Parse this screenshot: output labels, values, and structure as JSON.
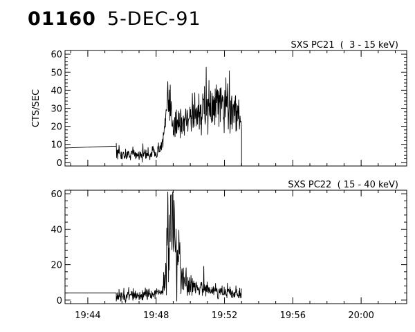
{
  "header": {
    "event_id": "01160",
    "date": "5-DEC-91"
  },
  "chart_data": [
    {
      "type": "line",
      "panel_label": "SXS PC21  (  3 - 15 keV)",
      "ylabel": "CTS/SEC",
      "xlim": [
        "19:42:40",
        "20:02:40"
      ],
      "ylim": [
        -2,
        62
      ],
      "yticks": [
        0,
        10,
        20,
        30,
        40,
        50,
        60
      ],
      "xticks": [
        "19:44",
        "19:48",
        "19:52",
        "19:56",
        "20:00"
      ],
      "series": [
        {
          "x": [
            "19:42:40",
            "19:45:40",
            "19:45:40",
            "19:46:10",
            "19:46:40",
            "19:47:10",
            "19:47:40",
            "19:48:10",
            "19:48:25",
            "19:48:40",
            "19:48:45",
            "19:48:55",
            "19:49:10",
            "19:49:30",
            "19:49:50",
            "19:50:10",
            "19:50:30",
            "19:50:50",
            "19:51:10",
            "19:51:30",
            "19:51:50",
            "19:52:10",
            "19:52:35",
            "19:52:55",
            "19:53:00",
            "19:53:00"
          ],
          "values": [
            8,
            9,
            5,
            4,
            5,
            4,
            5,
            7,
            12,
            30,
            33,
            26,
            22,
            21,
            25,
            30,
            28,
            27,
            30,
            32,
            31,
            33,
            31,
            25,
            18,
            0
          ]
        }
      ]
    },
    {
      "type": "line",
      "panel_label": "SXS PC22  ( 15 - 40 keV)",
      "ylabel": "",
      "xlim": [
        "19:42:40",
        "20:02:40"
      ],
      "ylim": [
        -2,
        62
      ],
      "yticks": [
        0,
        20,
        40,
        60
      ],
      "xticks": [
        "19:44",
        "19:48",
        "19:52",
        "19:56",
        "20:00"
      ],
      "series": [
        {
          "x": [
            "19:42:40",
            "19:45:40",
            "19:45:40",
            "19:46:30",
            "19:47:20",
            "19:48:00",
            "19:48:20",
            "19:48:35",
            "19:48:50",
            "19:49:00",
            "19:49:15",
            "19:49:30",
            "19:50:00",
            "19:50:30",
            "19:51:00",
            "19:51:30",
            "19:52:00",
            "19:52:30",
            "19:53:00"
          ],
          "values": [
            4,
            4,
            2,
            3,
            3,
            4,
            5,
            15,
            42,
            40,
            25,
            12,
            8,
            7,
            6,
            5,
            4,
            4,
            3
          ]
        }
      ]
    }
  ]
}
